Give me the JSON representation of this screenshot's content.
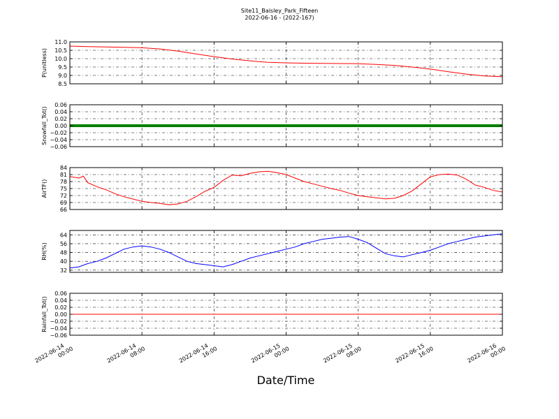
{
  "chart_data": {
    "type": "line",
    "title": "Site11_Baisley_Park_Fifteen",
    "subtitle": "2022-06-16 - (2022-167)",
    "xlabel": "Date/Time",
    "x_ticks": [
      "2022-06-14 00:00",
      "2022-06-14 08:00",
      "2022-06-14 16:00",
      "2022-06-15 00:00",
      "2022-06-15 08:00",
      "2022-06-15 16:00",
      "2022-06-16 00:00"
    ],
    "x_range_hours": [
      0,
      48
    ],
    "grid": true,
    "panels": [
      {
        "ylabel": "P(unitless)",
        "ylim": [
          8.5,
          11.0
        ],
        "y_ticks": [
          "11.0",
          "10.5",
          "10.0",
          "9.5",
          "9.0",
          "8.5"
        ],
        "color": "#ff0000",
        "series_type": "line",
        "points": [
          [
            0,
            10.75
          ],
          [
            2,
            10.72
          ],
          [
            4,
            10.7
          ],
          [
            6,
            10.68
          ],
          [
            8,
            10.65
          ],
          [
            10,
            10.58
          ],
          [
            12,
            10.45
          ],
          [
            14,
            10.28
          ],
          [
            16,
            10.12
          ],
          [
            18,
            9.98
          ],
          [
            20,
            9.87
          ],
          [
            21,
            9.82
          ],
          [
            22,
            9.78
          ],
          [
            24,
            9.75
          ],
          [
            26,
            9.73
          ],
          [
            28,
            9.72
          ],
          [
            30,
            9.71
          ],
          [
            32,
            9.7
          ],
          [
            34,
            9.66
          ],
          [
            36,
            9.6
          ],
          [
            38,
            9.5
          ],
          [
            40,
            9.38
          ],
          [
            42,
            9.22
          ],
          [
            44,
            9.08
          ],
          [
            46,
            8.97
          ],
          [
            48,
            8.92
          ]
        ]
      },
      {
        "ylabel": "Snowfall_Tot()",
        "ylim": [
          -0.06,
          0.06
        ],
        "y_ticks": [
          "0.06",
          "0.04",
          "0.02",
          "0.00",
          "−0.02",
          "−0.04",
          "−0.06"
        ],
        "color": "#007f00",
        "series_type": "markers",
        "points": [
          [
            0,
            0
          ],
          [
            48,
            0
          ]
        ]
      },
      {
        "ylabel": "AirTF()",
        "ylim": [
          66,
          84
        ],
        "y_ticks": [
          "84",
          "81",
          "78",
          "75",
          "72",
          "69",
          "66"
        ],
        "color": "#ff0000",
        "series_type": "line",
        "points": [
          [
            0,
            80.2
          ],
          [
            1,
            79.5
          ],
          [
            1.5,
            80.3
          ],
          [
            2,
            77.5
          ],
          [
            3,
            75.8
          ],
          [
            4,
            74.5
          ],
          [
            5,
            72.8
          ],
          [
            6,
            71.5
          ],
          [
            7,
            70.5
          ],
          [
            8,
            69.5
          ],
          [
            9,
            69.0
          ],
          [
            10,
            68.6
          ],
          [
            11,
            68.0
          ],
          [
            12,
            68.4
          ],
          [
            13,
            69.5
          ],
          [
            14,
            71.5
          ],
          [
            15,
            73.8
          ],
          [
            16,
            75.5
          ],
          [
            17,
            78.5
          ],
          [
            18,
            80.8
          ],
          [
            19,
            80.5
          ],
          [
            20,
            81.5
          ],
          [
            21,
            82.2
          ],
          [
            22,
            82.4
          ],
          [
            23,
            81.8
          ],
          [
            24,
            81.0
          ],
          [
            25,
            79.5
          ],
          [
            26,
            78.0
          ],
          [
            27,
            77.0
          ],
          [
            28,
            76.0
          ],
          [
            29,
            75.0
          ],
          [
            30,
            74.2
          ],
          [
            31,
            73.0
          ],
          [
            32,
            72.0
          ],
          [
            33,
            71.5
          ],
          [
            34,
            71.0
          ],
          [
            35,
            70.6
          ],
          [
            36,
            70.8
          ],
          [
            37,
            72.0
          ],
          [
            38,
            74.0
          ],
          [
            39,
            77.0
          ],
          [
            40,
            80.0
          ],
          [
            41,
            81.0
          ],
          [
            42,
            81.2
          ],
          [
            43,
            80.8
          ],
          [
            44,
            79.0
          ],
          [
            45,
            76.5
          ],
          [
            46,
            75.5
          ],
          [
            47,
            74.2
          ],
          [
            48,
            73.5
          ],
          [
            49,
            72.5
          ],
          [
            50,
            71.8
          ],
          [
            51,
            71.2
          ],
          [
            52,
            71.0
          ]
        ]
      },
      {
        "ylabel": "RH(%)",
        "ylim": [
          30,
          68
        ],
        "y_ticks": [
          "64",
          "56",
          "48",
          "40",
          "32"
        ],
        "color": "#0000ff",
        "series_type": "line",
        "points": [
          [
            0,
            34
          ],
          [
            1,
            35
          ],
          [
            2,
            38
          ],
          [
            3,
            40
          ],
          [
            4,
            43
          ],
          [
            5,
            47
          ],
          [
            6,
            51
          ],
          [
            7,
            53
          ],
          [
            8,
            54
          ],
          [
            9,
            53
          ],
          [
            10,
            51
          ],
          [
            11,
            48
          ],
          [
            12,
            44
          ],
          [
            13,
            40
          ],
          [
            14,
            38
          ],
          [
            15,
            37
          ],
          [
            16,
            36
          ],
          [
            17,
            35
          ],
          [
            18,
            37
          ],
          [
            19,
            40
          ],
          [
            20,
            43
          ],
          [
            21,
            45
          ],
          [
            22,
            47
          ],
          [
            23,
            49
          ],
          [
            24,
            51
          ],
          [
            25,
            53
          ],
          [
            26,
            56
          ],
          [
            27,
            58
          ],
          [
            28,
            60
          ],
          [
            29,
            61
          ],
          [
            30,
            62
          ],
          [
            31,
            62.5
          ],
          [
            32,
            60
          ],
          [
            33,
            57
          ],
          [
            34,
            52
          ],
          [
            35,
            47
          ],
          [
            36,
            45
          ],
          [
            37,
            44
          ],
          [
            38,
            46
          ],
          [
            39,
            48
          ],
          [
            40,
            50
          ],
          [
            41,
            53
          ],
          [
            42,
            56
          ],
          [
            43,
            58
          ],
          [
            44,
            60
          ],
          [
            45,
            62
          ],
          [
            46,
            63
          ],
          [
            47,
            64
          ],
          [
            48,
            65
          ],
          [
            49,
            65.5
          ],
          [
            50,
            65.5
          ]
        ]
      },
      {
        "ylabel": "Rainfall_Tot()",
        "ylim": [
          -0.06,
          0.06
        ],
        "y_ticks": [
          "0.06",
          "0.04",
          "0.02",
          "0.00",
          "−0.02",
          "−0.04",
          "−0.06"
        ],
        "color": "#ff0000",
        "series_type": "line",
        "points": [
          [
            0,
            0
          ],
          [
            48,
            0
          ]
        ]
      }
    ]
  }
}
